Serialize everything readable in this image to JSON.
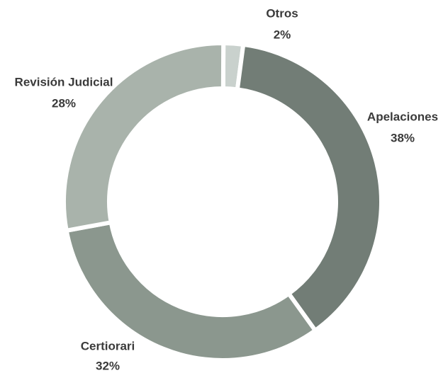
{
  "chart_data": {
    "type": "pie",
    "categories": [
      "Otros",
      "Apelaciones",
      "Certiorari",
      "Revisión Judicial"
    ],
    "values": [
      2,
      38,
      32,
      28
    ],
    "value_labels": [
      "2%",
      "38%",
      "32%",
      "28%"
    ],
    "colors": [
      "#c9d1cd",
      "#727d76",
      "#8b978e",
      "#a9b3ab"
    ]
  }
}
